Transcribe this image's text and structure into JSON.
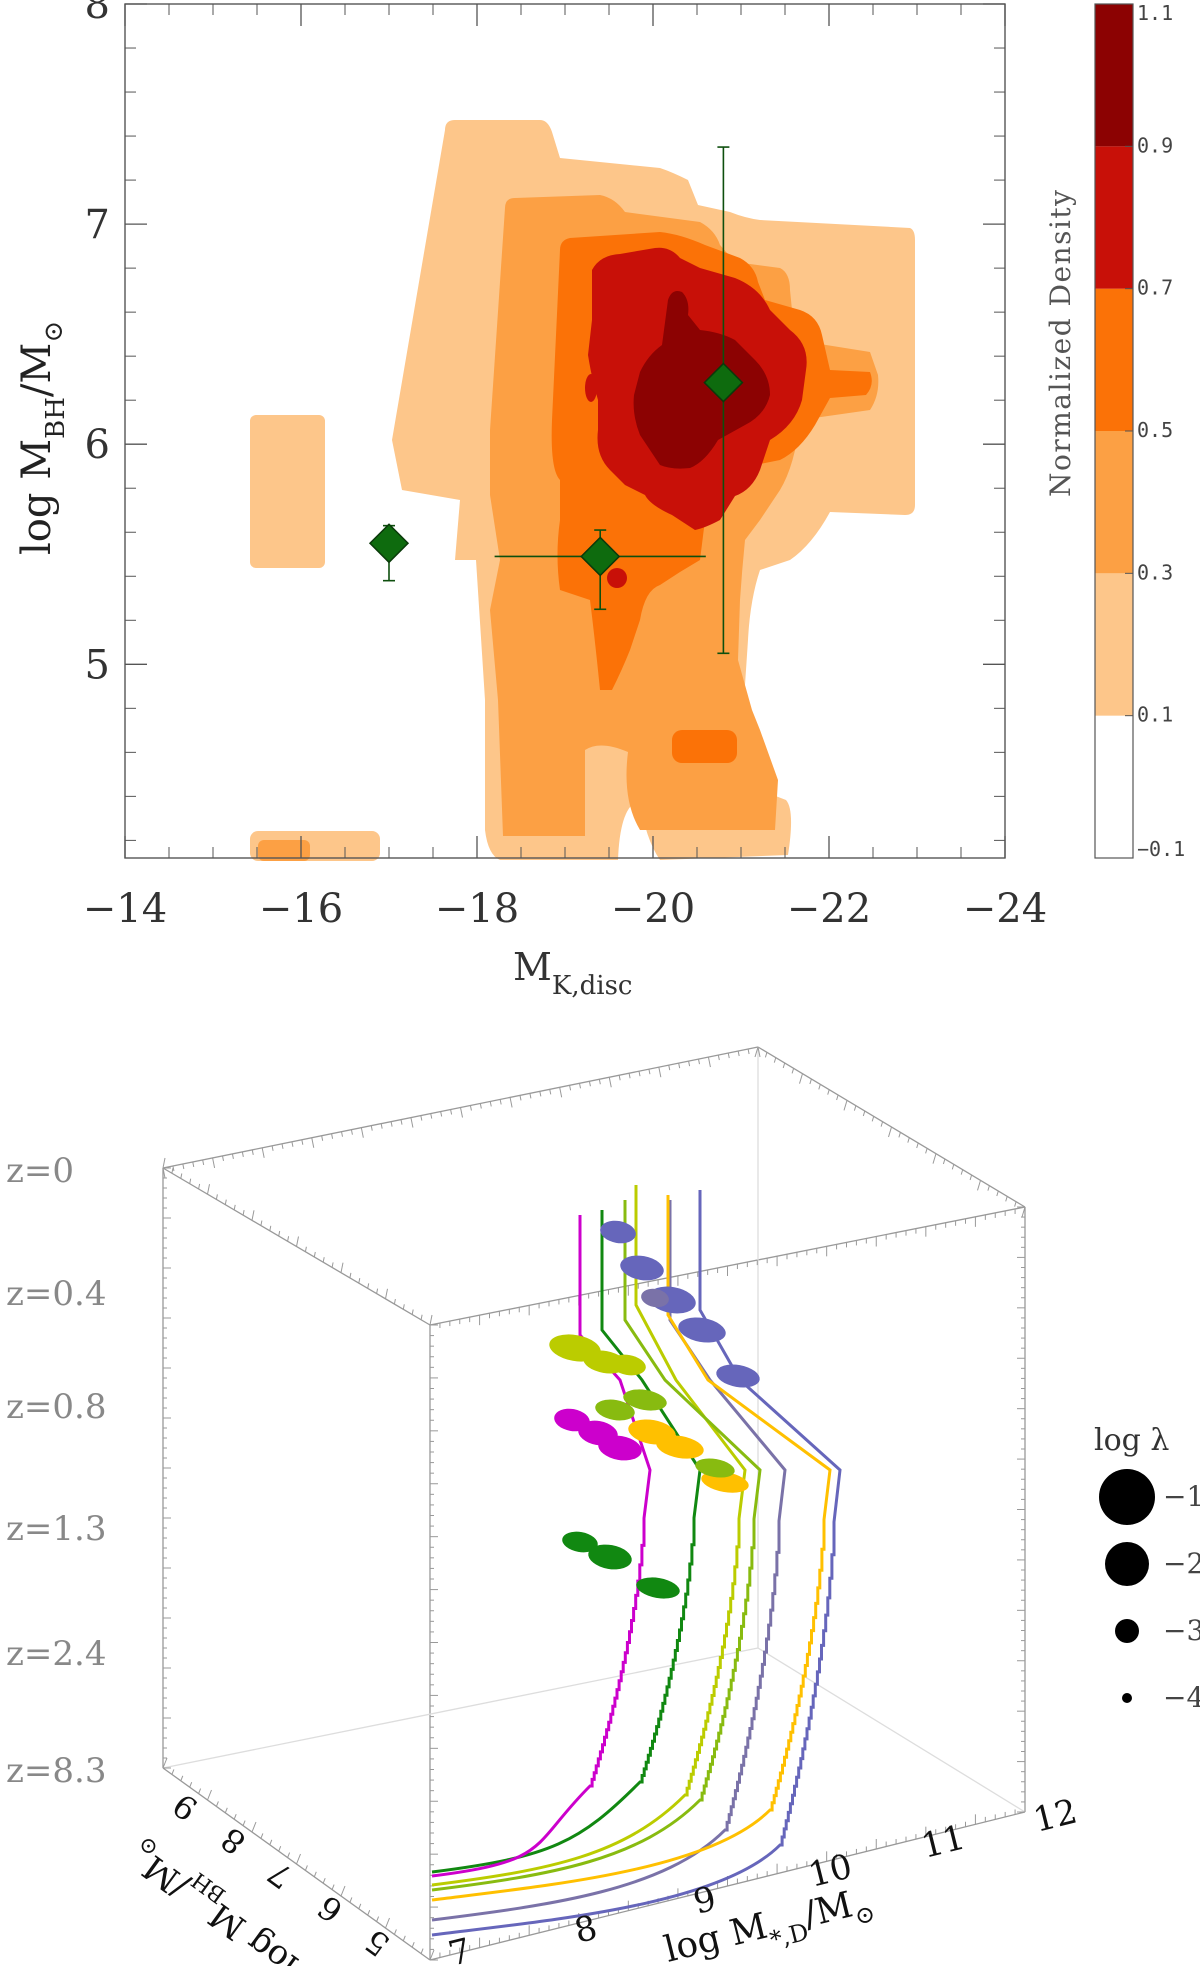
{
  "chart_data": [
    {
      "type": "heatmap",
      "xlabel": "M",
      "xlabel_sub": "K,disc",
      "ylabel_parts": [
        "log M",
        "BH",
        "/M",
        "⊙"
      ],
      "x_ticks": [
        -14,
        -16,
        -18,
        -20,
        -22,
        -24
      ],
      "x_tick_labels": [
        "−14",
        "−16",
        "−18",
        "−20",
        "−22",
        "−24"
      ],
      "y_ticks": [
        5,
        6,
        7,
        8
      ],
      "y_tick_labels": [
        "5",
        "6",
        "7",
        "8"
      ],
      "xlim": [
        -14,
        -24
      ],
      "ylim": [
        4.12,
        8.0
      ],
      "colorbar": {
        "title": "Normalized Density",
        "levels": [
          -0.1,
          0.1,
          0.3,
          0.5,
          0.7,
          0.9,
          1.1
        ],
        "level_labels": [
          "−0.1",
          "0.1",
          "0.3",
          "0.5",
          "0.7",
          "0.9",
          "1.1"
        ],
        "colors": [
          "#ffffff",
          "#fdc68a",
          "#fca044",
          "#fb7207",
          "#c81008",
          "#8c0202"
        ]
      },
      "observed_points": [
        {
          "x": -17.0,
          "y": 5.55,
          "xerr": [
            0,
            0
          ],
          "yerr": [
            0.17,
            0.08
          ]
        },
        {
          "x": -19.4,
          "y": 5.49,
          "xerr": [
            1.2,
            1.2
          ],
          "yerr": [
            0.24,
            0.12
          ]
        },
        {
          "x": -20.8,
          "y": 6.28,
          "xerr": [
            0,
            0
          ],
          "yerr": [
            1.23,
            1.07
          ]
        }
      ],
      "marker_color": "#0e6b0e"
    },
    {
      "type": "line",
      "projection": "3d",
      "xlabel": "log M",
      "xlabel_sub": "*,D",
      "xlabel_tail": "/M",
      "xlabel_sun": "⊙",
      "ylabel": "log M",
      "ylabel_sub": "BH",
      "ylabel_tail": "/M",
      "ylabel_sun": "⊙",
      "x_ticks": [
        7,
        8,
        9,
        10,
        11,
        12
      ],
      "y_ticks": [
        5,
        6,
        7,
        8,
        9
      ],
      "z_labels": [
        "z=0",
        "z=0.4",
        "z=0.8",
        "z=1.3",
        "z=2.4",
        "z=8.3"
      ],
      "size_legend": {
        "title": "log λ",
        "entries": [
          {
            "value": -1,
            "label": "−1"
          },
          {
            "value": -2,
            "label": "−2"
          },
          {
            "value": -3,
            "label": "−3"
          },
          {
            "value": -4,
            "label": "−4"
          }
        ]
      },
      "series": [
        {
          "color": "#6666bb",
          "x_final": 11.0,
          "ybh_final": 6.4
        },
        {
          "color": "#7a72a8",
          "x_final": 10.7,
          "ybh_final": 6.1
        },
        {
          "color": "#ffc000",
          "x_final": 10.9,
          "ybh_final": 6.2
        },
        {
          "color": "#bbcc00",
          "x_final": 10.1,
          "ybh_final": 5.9
        },
        {
          "color": "#88bb10",
          "x_final": 10.4,
          "ybh_final": 6.0
        },
        {
          "color": "#118811",
          "x_final": 9.7,
          "ybh_final": 5.7
        },
        {
          "color": "#cc00cc",
          "x_final": 9.4,
          "ybh_final": 5.4
        }
      ]
    }
  ]
}
